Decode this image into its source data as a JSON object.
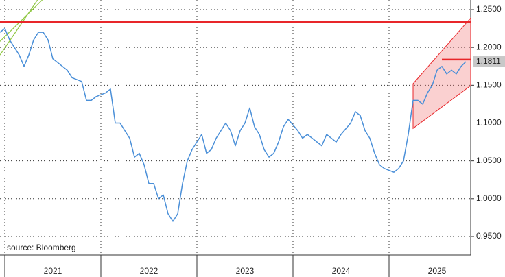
{
  "chart_data": {
    "type": "line",
    "source": "source: Bloomberg",
    "xlim": [
      2020.95,
      2025.85
    ],
    "ylim": [
      0.9255,
      1.2627
    ],
    "xticks": [
      {
        "value": 2021.5,
        "label": "2021"
      },
      {
        "value": 2022.5,
        "label": "2022"
      },
      {
        "value": 2023.5,
        "label": "2023"
      },
      {
        "value": 2024.5,
        "label": "2024"
      },
      {
        "value": 2025.5,
        "label": "2025"
      }
    ],
    "x_separators": [
      2021,
      2022,
      2023,
      2024,
      2025
    ],
    "yticks": [
      {
        "value": 0.95,
        "label": "0.9500"
      },
      {
        "value": 1.0,
        "label": "1.0000"
      },
      {
        "value": 1.05,
        "label": "1.0500"
      },
      {
        "value": 1.1,
        "label": "1.1000"
      },
      {
        "value": 1.15,
        "label": "1.1500"
      },
      {
        "value": 1.2,
        "label": "1.2000"
      },
      {
        "value": 1.25,
        "label": "1.2500"
      }
    ],
    "grid": true,
    "series": [
      {
        "color": "#4a8fd8",
        "x": [
          2020.95,
          2021.0,
          2021.05,
          2021.1,
          2021.15,
          2021.2,
          2021.25,
          2021.3,
          2021.35,
          2021.4,
          2021.45,
          2021.5,
          2021.55,
          2021.6,
          2021.65,
          2021.7,
          2021.8,
          2021.85,
          2021.9,
          2021.95,
          2022.05,
          2022.1,
          2022.15,
          2022.2,
          2022.3,
          2022.35,
          2022.4,
          2022.45,
          2022.5,
          2022.55,
          2022.6,
          2022.65,
          2022.7,
          2022.75,
          2022.8,
          2022.85,
          2022.9,
          2022.95,
          2023.05,
          2023.1,
          2023.15,
          2023.2,
          2023.3,
          2023.35,
          2023.4,
          2023.45,
          2023.5,
          2023.55,
          2023.6,
          2023.65,
          2023.7,
          2023.75,
          2023.8,
          2023.85,
          2023.9,
          2023.95,
          2024.05,
          2024.1,
          2024.15,
          2024.2,
          2024.3,
          2024.35,
          2024.4,
          2024.45,
          2024.5,
          2024.6,
          2024.65,
          2024.7,
          2024.75,
          2024.8,
          2024.85,
          2024.9,
          2024.95,
          2025.05,
          2025.1,
          2025.15,
          2025.2,
          2025.25,
          2025.3,
          2025.35,
          2025.4,
          2025.45,
          2025.5,
          2025.55,
          2025.6,
          2025.65,
          2025.7,
          2025.75,
          2025.8
        ],
        "values": [
          1.22,
          1.225,
          1.21,
          1.2,
          1.19,
          1.175,
          1.19,
          1.21,
          1.22,
          1.22,
          1.21,
          1.185,
          1.18,
          1.175,
          1.17,
          1.16,
          1.155,
          1.13,
          1.13,
          1.135,
          1.14,
          1.145,
          1.1,
          1.1,
          1.08,
          1.055,
          1.06,
          1.045,
          1.02,
          1.02,
          1.0,
          1.005,
          0.98,
          0.97,
          0.98,
          1.02,
          1.05,
          1.065,
          1.085,
          1.06,
          1.065,
          1.08,
          1.1,
          1.09,
          1.07,
          1.09,
          1.1,
          1.12,
          1.095,
          1.085,
          1.065,
          1.055,
          1.06,
          1.075,
          1.095,
          1.105,
          1.09,
          1.08,
          1.085,
          1.08,
          1.07,
          1.085,
          1.08,
          1.075,
          1.085,
          1.1,
          1.115,
          1.11,
          1.09,
          1.08,
          1.06,
          1.045,
          1.04,
          1.035,
          1.04,
          1.05,
          1.085,
          1.13,
          1.13,
          1.125,
          1.14,
          1.15,
          1.17,
          1.175,
          1.165,
          1.17,
          1.165,
          1.175,
          1.1811
        ]
      }
    ],
    "last_value_label": "1.1811",
    "red_lines": [
      {
        "y": 1.2335,
        "x": [
          2020.95,
          2025.85
        ]
      },
      {
        "y": 1.1839,
        "x": [
          2025.55,
          2025.85
        ]
      }
    ],
    "red_color": "#e8262a",
    "channel": {
      "x": [
        2025.25,
        2025.85
      ],
      "upper": [
        1.152,
        1.239
      ],
      "lower": [
        1.093,
        1.1495
      ]
    },
    "green_lines": [
      {
        "x": [
          2020.95,
          2021.39
        ],
        "y": [
          1.208,
          1.2627
        ]
      },
      {
        "x": [
          2020.95,
          2021.34
        ],
        "y": [
          1.19,
          1.2627
        ]
      }
    ],
    "green_color": "#8dc63f"
  }
}
